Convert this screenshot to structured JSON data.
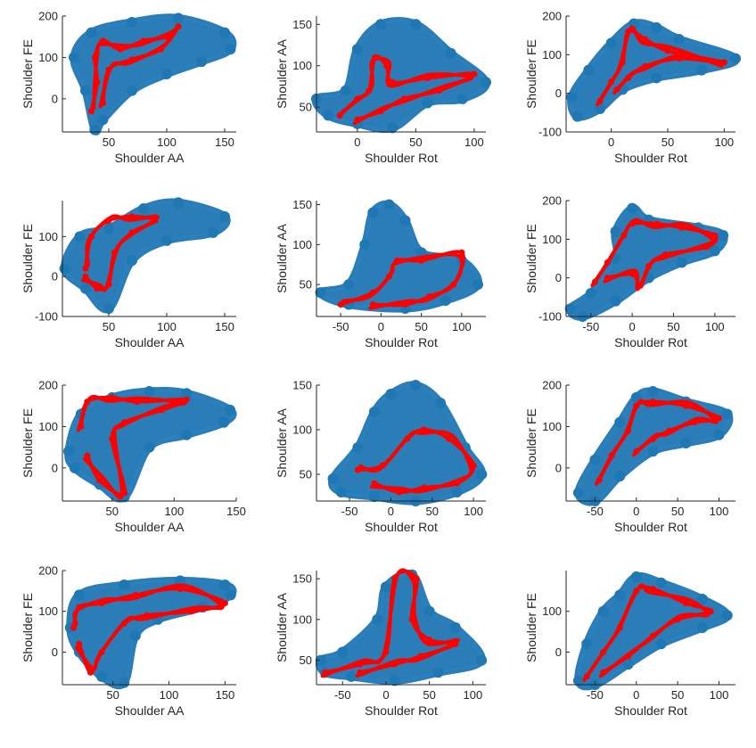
{
  "blue_color": "#1f77b4",
  "red_color": "#ff0000",
  "chart_data": [
    {
      "type": "scatter",
      "xlabel": "Shoulder AA",
      "ylabel": "Shoulder FE",
      "xlim": [
        10,
        160
      ],
      "ylim": [
        -80,
        200
      ],
      "xticks": [
        50,
        100,
        150
      ],
      "yticks": [
        0,
        100,
        200
      ],
      "blue": [
        [
          20,
          100
        ],
        [
          35,
          160
        ],
        [
          70,
          185
        ],
        [
          110,
          195
        ],
        [
          150,
          160
        ],
        [
          155,
          120
        ],
        [
          130,
          90
        ],
        [
          100,
          60
        ],
        [
          70,
          20
        ],
        [
          45,
          -50
        ],
        [
          38,
          -75
        ],
        [
          30,
          20
        ]
      ],
      "red": [
        [
          35,
          -30
        ],
        [
          40,
          40
        ],
        [
          38,
          100
        ],
        [
          45,
          140
        ],
        [
          60,
          120
        ],
        [
          80,
          140
        ],
        [
          100,
          150
        ],
        [
          110,
          175
        ],
        [
          95,
          120
        ],
        [
          70,
          95
        ],
        [
          50,
          70
        ],
        [
          45,
          -10
        ]
      ]
    },
    {
      "type": "scatter",
      "xlabel": "Shoulder Rot",
      "ylabel": "Shoulder AA",
      "xlim": [
        -35,
        110
      ],
      "ylim": [
        20,
        160
      ],
      "xticks": [
        0,
        50,
        100
      ],
      "yticks": [
        50,
        100,
        150
      ],
      "blue": [
        [
          -35,
          60
        ],
        [
          -10,
          70
        ],
        [
          0,
          120
        ],
        [
          20,
          150
        ],
        [
          50,
          150
        ],
        [
          80,
          115
        ],
        [
          110,
          80
        ],
        [
          90,
          60
        ],
        [
          60,
          55
        ],
        [
          30,
          25
        ],
        [
          0,
          30
        ],
        [
          -25,
          40
        ]
      ],
      "red": [
        [
          -15,
          40
        ],
        [
          0,
          60
        ],
        [
          10,
          70
        ],
        [
          15,
          110
        ],
        [
          25,
          100
        ],
        [
          30,
          80
        ],
        [
          60,
          85
        ],
        [
          100,
          90
        ],
        [
          70,
          70
        ],
        [
          40,
          60
        ],
        [
          20,
          45
        ],
        [
          0,
          35
        ]
      ]
    },
    {
      "type": "scatter",
      "xlabel": "Shoulder Rot",
      "ylabel": "Shoulder FE",
      "xlim": [
        -40,
        110
      ],
      "ylim": [
        -100,
        200
      ],
      "xticks": [
        0,
        50,
        100
      ],
      "yticks": [
        -100,
        0,
        100,
        200
      ],
      "blue": [
        [
          -35,
          -10
        ],
        [
          -20,
          60
        ],
        [
          0,
          130
        ],
        [
          20,
          180
        ],
        [
          40,
          170
        ],
        [
          60,
          140
        ],
        [
          110,
          90
        ],
        [
          80,
          60
        ],
        [
          40,
          40
        ],
        [
          10,
          10
        ],
        [
          -10,
          -40
        ],
        [
          -30,
          -60
        ]
      ],
      "red": [
        [
          -10,
          -20
        ],
        [
          0,
          30
        ],
        [
          10,
          80
        ],
        [
          15,
          160
        ],
        [
          30,
          140
        ],
        [
          50,
          110
        ],
        [
          100,
          80
        ],
        [
          60,
          90
        ],
        [
          30,
          70
        ],
        [
          15,
          40
        ],
        [
          5,
          10
        ]
      ]
    },
    {
      "type": "scatter",
      "xlabel": "Shoulder AA",
      "ylabel": "Shoulder FE",
      "xlim": [
        10,
        160
      ],
      "ylim": [
        -100,
        190
      ],
      "xticks": [
        50,
        100,
        150
      ],
      "yticks": [
        -100,
        0,
        100
      ],
      "blue": [
        [
          12,
          20
        ],
        [
          25,
          100
        ],
        [
          50,
          120
        ],
        [
          80,
          170
        ],
        [
          110,
          185
        ],
        [
          150,
          150
        ],
        [
          140,
          110
        ],
        [
          100,
          90
        ],
        [
          70,
          40
        ],
        [
          50,
          -80
        ],
        [
          30,
          -30
        ]
      ],
      "red": [
        [
          30,
          20
        ],
        [
          35,
          100
        ],
        [
          50,
          140
        ],
        [
          70,
          150
        ],
        [
          90,
          140
        ],
        [
          70,
          110
        ],
        [
          55,
          60
        ],
        [
          50,
          -20
        ],
        [
          40,
          -30
        ],
        [
          30,
          0
        ]
      ]
    },
    {
      "type": "scatter",
      "xlabel": "Shoulder Rot",
      "ylabel": "Shoulder AA",
      "xlim": [
        -80,
        130
      ],
      "ylim": [
        10,
        155
      ],
      "xticks": [
        -50,
        0,
        50,
        100
      ],
      "yticks": [
        50,
        100,
        150
      ],
      "blue": [
        [
          -75,
          40
        ],
        [
          -40,
          50
        ],
        [
          -20,
          100
        ],
        [
          -10,
          140
        ],
        [
          10,
          150
        ],
        [
          30,
          130
        ],
        [
          50,
          90
        ],
        [
          100,
          80
        ],
        [
          120,
          50
        ],
        [
          80,
          30
        ],
        [
          30,
          20
        ],
        [
          -40,
          25
        ]
      ],
      "red": [
        [
          -50,
          25
        ],
        [
          -10,
          40
        ],
        [
          10,
          60
        ],
        [
          20,
          80
        ],
        [
          50,
          80
        ],
        [
          100,
          90
        ],
        [
          90,
          50
        ],
        [
          60,
          35
        ],
        [
          30,
          25
        ],
        [
          -10,
          25
        ]
      ]
    },
    {
      "type": "scatter",
      "xlabel": "Shoulder Rot",
      "ylabel": "Shoulder FE",
      "xlim": [
        -80,
        125
      ],
      "ylim": [
        -100,
        200
      ],
      "xticks": [
        -50,
        0,
        50,
        100
      ],
      "yticks": [
        -100,
        0,
        100,
        200
      ],
      "blue": [
        [
          -75,
          -80
        ],
        [
          -50,
          -40
        ],
        [
          -20,
          50
        ],
        [
          -20,
          120
        ],
        [
          0,
          180
        ],
        [
          20,
          150
        ],
        [
          80,
          130
        ],
        [
          110,
          110
        ],
        [
          100,
          70
        ],
        [
          60,
          40
        ],
        [
          20,
          0
        ],
        [
          -20,
          -60
        ],
        [
          -60,
          -100
        ]
      ],
      "red": [
        [
          -45,
          -10
        ],
        [
          -30,
          40
        ],
        [
          -10,
          110
        ],
        [
          0,
          140
        ],
        [
          30,
          140
        ],
        [
          60,
          130
        ],
        [
          100,
          110
        ],
        [
          90,
          80
        ],
        [
          40,
          60
        ],
        [
          20,
          30
        ],
        [
          10,
          -20
        ],
        [
          0,
          10
        ],
        [
          -30,
          0
        ]
      ]
    },
    {
      "type": "scatter",
      "xlabel": "Shoulder AA",
      "ylabel": "Shoulder FE",
      "xlim": [
        10,
        150
      ],
      "ylim": [
        -80,
        200
      ],
      "xticks": [
        50,
        100,
        150
      ],
      "yticks": [
        0,
        100,
        200
      ],
      "blue": [
        [
          15,
          40
        ],
        [
          25,
          130
        ],
        [
          50,
          170
        ],
        [
          80,
          185
        ],
        [
          110,
          180
        ],
        [
          145,
          140
        ],
        [
          140,
          110
        ],
        [
          110,
          80
        ],
        [
          80,
          50
        ],
        [
          60,
          -70
        ],
        [
          40,
          -40
        ],
        [
          20,
          0
        ]
      ],
      "red": [
        [
          25,
          100
        ],
        [
          30,
          160
        ],
        [
          50,
          170
        ],
        [
          70,
          160
        ],
        [
          110,
          165
        ],
        [
          90,
          140
        ],
        [
          60,
          110
        ],
        [
          50,
          70
        ],
        [
          60,
          -60
        ],
        [
          40,
          -30
        ],
        [
          30,
          30
        ]
      ]
    },
    {
      "type": "scatter",
      "xlabel": "Shoulder Rot",
      "ylabel": "Shoulder AA",
      "xlim": [
        -90,
        115
      ],
      "ylim": [
        20,
        150
      ],
      "xticks": [
        -50,
        0,
        50,
        100
      ],
      "yticks": [
        50,
        100,
        150
      ],
      "blue": [
        [
          -70,
          45
        ],
        [
          -40,
          80
        ],
        [
          -20,
          120
        ],
        [
          0,
          140
        ],
        [
          30,
          150
        ],
        [
          60,
          130
        ],
        [
          90,
          80
        ],
        [
          110,
          50
        ],
        [
          80,
          30
        ],
        [
          30,
          20
        ],
        [
          -20,
          25
        ],
        [
          -60,
          30
        ]
      ],
      "red": [
        [
          -40,
          55
        ],
        [
          -10,
          60
        ],
        [
          20,
          90
        ],
        [
          40,
          100
        ],
        [
          70,
          90
        ],
        [
          100,
          60
        ],
        [
          80,
          40
        ],
        [
          40,
          35
        ],
        [
          10,
          30
        ],
        [
          -20,
          40
        ]
      ]
    },
    {
      "type": "scatter",
      "xlabel": "Shoulder Rot",
      "ylabel": "Shoulder FE",
      "xlim": [
        -85,
        120
      ],
      "ylim": [
        -80,
        200
      ],
      "xticks": [
        -50,
        0,
        50,
        100
      ],
      "yticks": [
        0,
        100,
        200
      ],
      "blue": [
        [
          -70,
          -60
        ],
        [
          -50,
          20
        ],
        [
          -20,
          110
        ],
        [
          0,
          170
        ],
        [
          20,
          185
        ],
        [
          60,
          160
        ],
        [
          110,
          130
        ],
        [
          100,
          80
        ],
        [
          60,
          60
        ],
        [
          20,
          40
        ],
        [
          -20,
          -20
        ],
        [
          -50,
          -80
        ]
      ],
      "red": [
        [
          -45,
          -30
        ],
        [
          -30,
          30
        ],
        [
          -10,
          90
        ],
        [
          0,
          150
        ],
        [
          20,
          160
        ],
        [
          60,
          150
        ],
        [
          100,
          120
        ],
        [
          70,
          110
        ],
        [
          40,
          90
        ],
        [
          20,
          70
        ],
        [
          0,
          40
        ]
      ]
    },
    {
      "type": "scatter",
      "xlabel": "Shoulder AA",
      "ylabel": "Shoulder FE",
      "xlim": [
        5,
        160
      ],
      "ylim": [
        -80,
        200
      ],
      "xticks": [
        50,
        100,
        150
      ],
      "yticks": [
        0,
        100,
        200
      ],
      "blue": [
        [
          12,
          60
        ],
        [
          20,
          140
        ],
        [
          60,
          165
        ],
        [
          110,
          175
        ],
        [
          150,
          165
        ],
        [
          155,
          140
        ],
        [
          130,
          110
        ],
        [
          90,
          80
        ],
        [
          70,
          40
        ],
        [
          60,
          -75
        ],
        [
          40,
          -60
        ],
        [
          20,
          0
        ]
      ],
      "red": [
        [
          15,
          60
        ],
        [
          20,
          110
        ],
        [
          40,
          120
        ],
        [
          70,
          140
        ],
        [
          110,
          155
        ],
        [
          150,
          120
        ],
        [
          120,
          100
        ],
        [
          80,
          90
        ],
        [
          60,
          70
        ],
        [
          40,
          0
        ],
        [
          30,
          -50
        ],
        [
          20,
          20
        ]
      ]
    },
    {
      "type": "scatter",
      "xlabel": "Shoulder Rot",
      "ylabel": "Shoulder AA",
      "xlim": [
        -80,
        115
      ],
      "ylim": [
        20,
        160
      ],
      "xticks": [
        -50,
        0,
        50,
        100
      ],
      "yticks": [
        50,
        100,
        150
      ],
      "blue": [
        [
          -75,
          50
        ],
        [
          -50,
          60
        ],
        [
          -10,
          100
        ],
        [
          0,
          140
        ],
        [
          30,
          155
        ],
        [
          50,
          110
        ],
        [
          80,
          90
        ],
        [
          110,
          50
        ],
        [
          60,
          35
        ],
        [
          10,
          25
        ],
        [
          -40,
          30
        ],
        [
          -70,
          35
        ]
      ],
      "red": [
        [
          -70,
          35
        ],
        [
          -30,
          45
        ],
        [
          0,
          60
        ],
        [
          10,
          150
        ],
        [
          35,
          150
        ],
        [
          30,
          100
        ],
        [
          50,
          75
        ],
        [
          80,
          70
        ],
        [
          40,
          55
        ],
        [
          10,
          45
        ],
        [
          -30,
          35
        ]
      ]
    },
    {
      "type": "scatter",
      "xlabel": "Shoulder Rot",
      "ylabel": "Shoulder FE",
      "xlim": [
        -85,
        120
      ],
      "ylim": [
        -80,
        200
      ],
      "xticks": [
        -50,
        0,
        50,
        100
      ],
      "yticks": [
        0,
        100
      ],
      "blue": [
        [
          -70,
          -70
        ],
        [
          -60,
          20
        ],
        [
          -40,
          100
        ],
        [
          -20,
          140
        ],
        [
          0,
          185
        ],
        [
          30,
          170
        ],
        [
          80,
          130
        ],
        [
          110,
          90
        ],
        [
          80,
          60
        ],
        [
          30,
          20
        ],
        [
          -10,
          -30
        ],
        [
          -50,
          -80
        ]
      ],
      "red": [
        [
          -60,
          -60
        ],
        [
          -40,
          0
        ],
        [
          -20,
          60
        ],
        [
          0,
          150
        ],
        [
          20,
          155
        ],
        [
          60,
          120
        ],
        [
          90,
          100
        ],
        [
          50,
          80
        ],
        [
          20,
          40
        ],
        [
          -10,
          -10
        ],
        [
          -40,
          -50
        ]
      ]
    }
  ]
}
